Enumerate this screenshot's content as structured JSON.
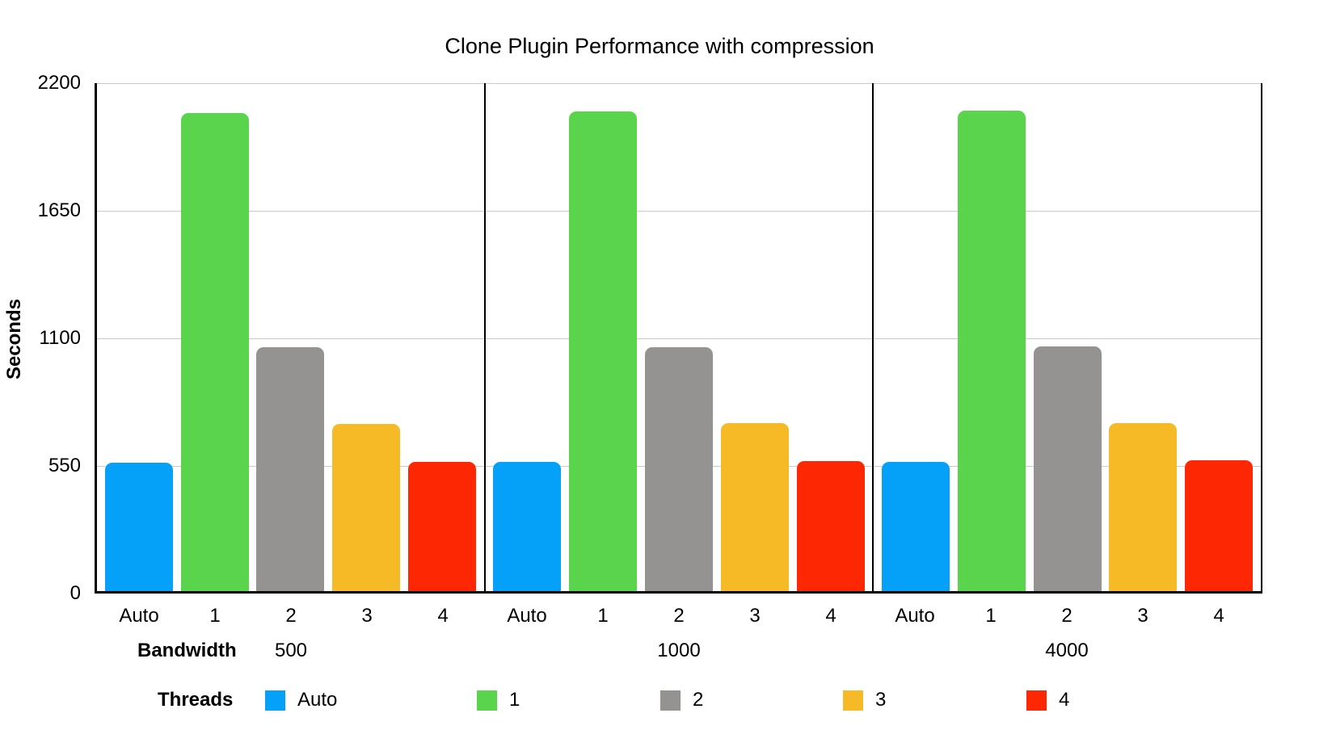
{
  "title": "Clone Plugin Performance with compression",
  "y_axis": {
    "label": "Seconds",
    "tick_labels": [
      "0",
      "550",
      "1100",
      "1650",
      "2200"
    ]
  },
  "x_axis": {
    "bandwidth_label": "Bandwidth",
    "thread_categories": [
      "Auto",
      "1",
      "2",
      "3",
      "4"
    ],
    "bandwidth_values": [
      "500",
      "1000",
      "4000"
    ]
  },
  "legend": {
    "label": "Threads",
    "items": [
      {
        "label": "Auto",
        "color": "#05A1F8"
      },
      {
        "label": "1",
        "color": "#5BD44D"
      },
      {
        "label": "2",
        "color": "#949392"
      },
      {
        "label": "3",
        "color": "#F6BA26"
      },
      {
        "label": "4",
        "color": "#FD2703"
      }
    ]
  },
  "colors": {
    "gridline": "#C9C9C9",
    "axis": "#000000",
    "background": "#FFFFFF"
  },
  "chart_data": {
    "type": "bar",
    "title": "Clone Plugin Performance with compression",
    "xlabel": "Bandwidth",
    "ylabel": "Seconds",
    "ylim": [
      0,
      2200
    ],
    "yticks": [
      0,
      550,
      1100,
      1650,
      2200
    ],
    "grid": true,
    "legend_position": "bottom",
    "series_dimension": "Threads",
    "categories": [
      "Auto",
      "1",
      "2",
      "3",
      "4"
    ],
    "series_colors": [
      "#05A1F8",
      "#5BD44D",
      "#949392",
      "#F6BA26",
      "#FD2703"
    ],
    "groups": [
      {
        "bandwidth": "500",
        "values": [
          553,
          2062,
          1051,
          722,
          557
        ]
      },
      {
        "bandwidth": "1000",
        "values": [
          556,
          2069,
          1053,
          723,
          562
        ]
      },
      {
        "bandwidth": "4000",
        "values": [
          557,
          2071,
          1054,
          723,
          563
        ]
      }
    ]
  }
}
